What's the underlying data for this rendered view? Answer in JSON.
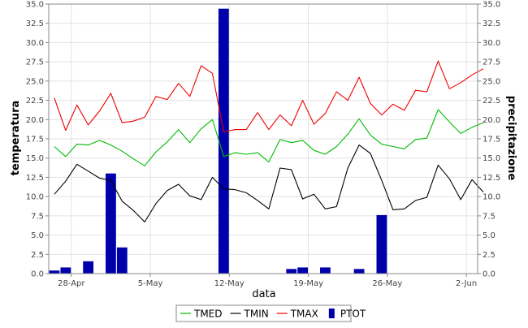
{
  "chart_data": {
    "type": "line",
    "xlabel": "data",
    "ylabel_left": "temperatura",
    "ylabel_right": "precipitazione",
    "ylim": [
      0,
      35
    ],
    "y_ticks": [
      "0.0",
      "2.5",
      "5.0",
      "7.5",
      "10.0",
      "12.5",
      "15.0",
      "17.5",
      "20.0",
      "22.5",
      "25.0",
      "27.5",
      "30.0",
      "32.5",
      "35.0"
    ],
    "x_ticks": [
      "28-Apr",
      "5-May",
      "12-May",
      "19-May",
      "26-May",
      "2-Jun"
    ],
    "grid": true,
    "legend_position": "bottom",
    "x_start": "2008-04-26",
    "x_end": "2008-06-03",
    "series": [
      {
        "name": "TMED",
        "kind": "line",
        "color": "#00bb00",
        "values": [
          16.5,
          15.2,
          16.8,
          16.7,
          17.3,
          16.7,
          15.9,
          14.9,
          14.0,
          15.8,
          17.1,
          18.7,
          17.0,
          18.8,
          20.0,
          15.2,
          15.7,
          15.5,
          15.7,
          14.5,
          17.4,
          17.0,
          17.3,
          16.0,
          15.5,
          16.5,
          18.1,
          20.1,
          18.0,
          16.8,
          16.5,
          16.2,
          17.4,
          17.6,
          21.3,
          19.7,
          18.2,
          19.0,
          19.6
        ]
      },
      {
        "name": "TMIN",
        "kind": "line",
        "color": "#000000",
        "values": [
          10.3,
          12.0,
          14.2,
          13.3,
          12.4,
          12.1,
          9.4,
          8.2,
          6.7,
          9.1,
          10.8,
          11.6,
          10.1,
          9.6,
          12.5,
          11.0,
          10.9,
          10.5,
          9.5,
          8.4,
          13.7,
          13.5,
          9.7,
          10.3,
          8.4,
          8.7,
          13.7,
          16.7,
          15.6,
          12.1,
          8.3,
          8.4,
          9.5,
          9.9,
          14.1,
          12.3,
          9.6,
          12.2,
          10.6
        ]
      },
      {
        "name": "TMAX",
        "kind": "line",
        "color": "#ee0000",
        "values": [
          22.8,
          18.6,
          21.9,
          19.3,
          21.1,
          23.4,
          19.6,
          19.8,
          20.3,
          23.0,
          22.6,
          24.7,
          23.0,
          27.0,
          26.0,
          18.4,
          18.7,
          18.7,
          20.9,
          18.7,
          20.6,
          19.2,
          22.5,
          19.4,
          20.8,
          23.6,
          22.5,
          25.5,
          22.1,
          20.6,
          22.0,
          21.2,
          23.8,
          23.6,
          27.6,
          24.0,
          24.8,
          25.8,
          26.6
        ]
      },
      {
        "name": "PTOT",
        "kind": "bar",
        "color": "#0000aa",
        "values": [
          0.4,
          0.8,
          0,
          1.6,
          0,
          13.0,
          3.4,
          0,
          0,
          0,
          0,
          0,
          0,
          0,
          0,
          34.4,
          0,
          0,
          0,
          0,
          0,
          0.6,
          0.8,
          0,
          0.8,
          0,
          0,
          0.6,
          0,
          7.6,
          0,
          0,
          0,
          0,
          0,
          0,
          0,
          0,
          0
        ]
      }
    ]
  }
}
